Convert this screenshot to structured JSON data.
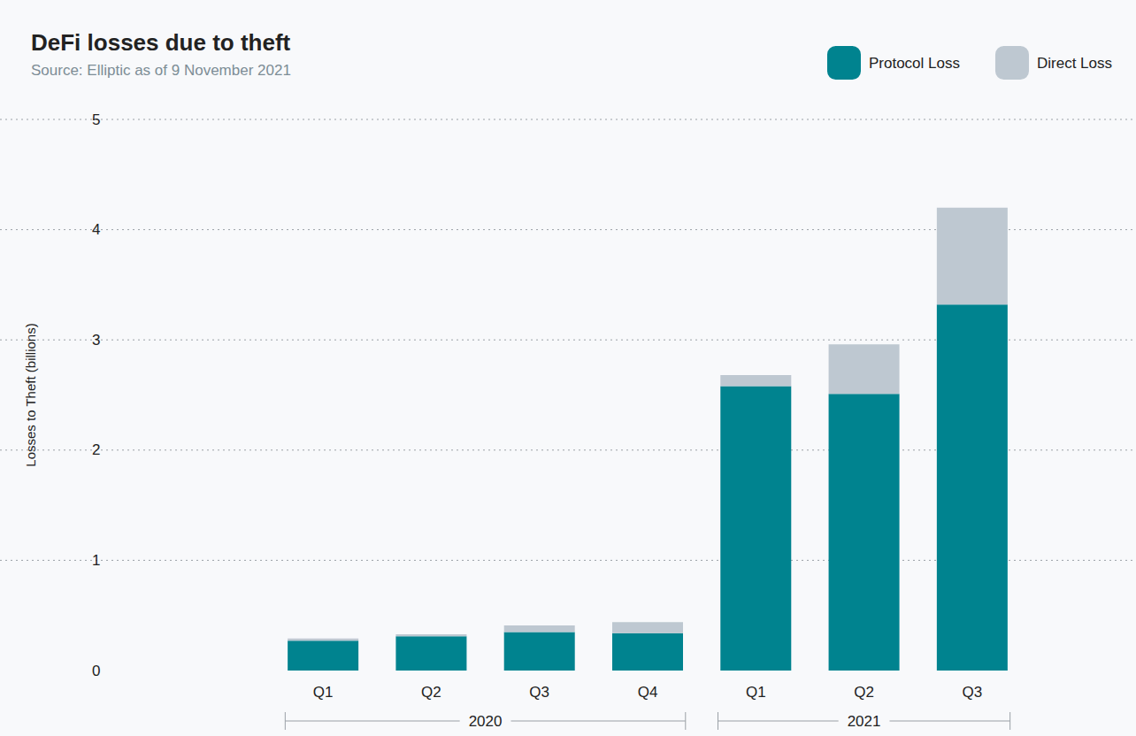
{
  "chart_data": {
    "type": "bar",
    "title": "DeFi losses due to theft",
    "subtitle": "Source: Elliptic as of 9 November 2021",
    "y_label": "Losses to Theft (billions)",
    "categories": [
      "Q1",
      "Q2",
      "Q3",
      "Q4",
      "Q1",
      "Q2",
      "Q3"
    ],
    "years": [
      "2020",
      "2020",
      "2020",
      "2020",
      "2021",
      "2021",
      "2021"
    ],
    "series": [
      {
        "name": "Protocol Loss",
        "color": "#00838f",
        "values": [
          0.27,
          0.31,
          0.35,
          0.34,
          2.58,
          2.51,
          3.32
        ]
      },
      {
        "name": "Direct Loss",
        "color": "#bec8d1",
        "values": [
          0.02,
          0.02,
          0.06,
          0.1,
          0.1,
          0.45,
          0.88
        ]
      }
    ],
    "ylim": [
      0,
      5
    ],
    "yticks": [
      0,
      1,
      2,
      3,
      4,
      5
    ],
    "stacked": true,
    "grid": true,
    "legend": "top-right"
  }
}
